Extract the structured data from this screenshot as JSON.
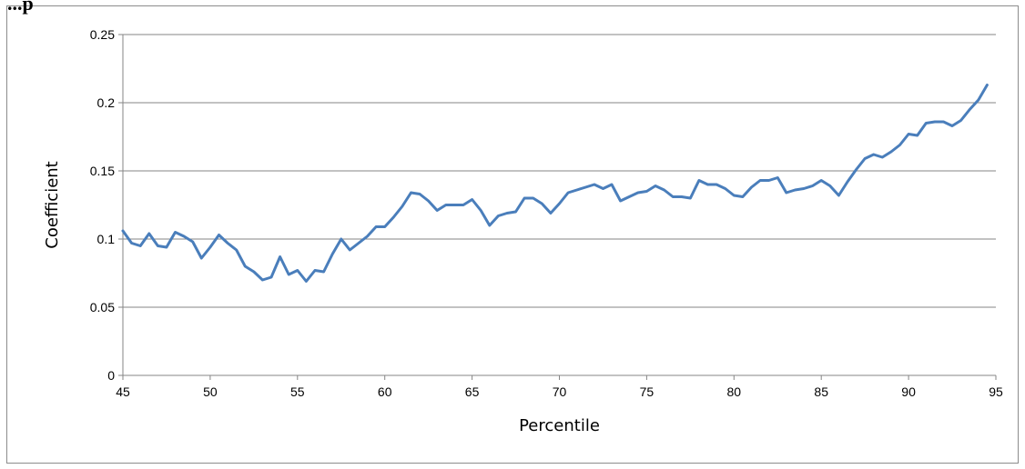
{
  "header_fragment": "...p",
  "chart_data": {
    "type": "line",
    "xlabel": "Percentile",
    "ylabel": "Coefficient",
    "xlim": [
      45,
      95
    ],
    "ylim": [
      0,
      0.25
    ],
    "x_ticks": [
      "45",
      "50",
      "55",
      "60",
      "65",
      "70",
      "75",
      "80",
      "85",
      "90",
      "95"
    ],
    "y_ticks": [
      "0",
      "0.05",
      "0.1",
      "0.15",
      "0.2",
      "0.25"
    ],
    "y_tick_values": [
      0,
      0.05,
      0.1,
      0.15,
      0.2,
      0.25
    ],
    "x_tick_values": [
      45,
      50,
      55,
      60,
      65,
      70,
      75,
      80,
      85,
      90,
      95
    ],
    "grid": "horizontal",
    "line_color": "#4a7ebb",
    "series": [
      {
        "x": [
          45,
          45.5,
          46,
          46.5,
          47,
          47.5,
          48,
          48.5,
          49,
          49.5,
          50,
          50.5,
          51,
          51.5,
          52,
          52.5,
          53,
          53.5,
          54,
          54.5,
          55,
          55.5,
          56,
          56.5,
          57,
          57.5,
          58,
          58.5,
          59,
          59.5,
          60,
          60.5,
          61,
          61.5,
          62,
          62.5,
          63,
          63.5,
          64,
          64.5,
          65,
          65.5,
          66,
          66.5,
          67,
          67.5,
          68,
          68.5,
          69,
          69.5,
          70,
          70.5,
          71,
          71.5,
          72,
          72.5,
          73,
          73.5,
          74,
          74.5,
          75,
          75.5,
          76,
          76.5,
          77,
          77.5,
          78,
          78.5,
          79,
          79.5,
          80,
          80.5,
          81,
          81.5,
          82,
          82.5,
          83,
          83.5,
          84,
          84.5,
          85,
          85.5,
          86,
          86.5,
          87,
          87.5,
          88,
          88.5,
          89,
          89.5,
          90,
          90.5,
          91,
          91.5,
          92,
          92.5,
          93,
          93.5,
          94,
          94.5
        ],
        "values": [
          0.106,
          0.097,
          0.095,
          0.104,
          0.095,
          0.094,
          0.105,
          0.102,
          0.098,
          0.086,
          0.094,
          0.103,
          0.097,
          0.092,
          0.08,
          0.076,
          0.07,
          0.072,
          0.087,
          0.074,
          0.077,
          0.069,
          0.077,
          0.076,
          0.089,
          0.1,
          0.092,
          0.097,
          0.102,
          0.109,
          0.109,
          0.116,
          0.124,
          0.134,
          0.133,
          0.128,
          0.121,
          0.125,
          0.125,
          0.125,
          0.129,
          0.121,
          0.11,
          0.117,
          0.119,
          0.12,
          0.13,
          0.13,
          0.126,
          0.119,
          0.126,
          0.134,
          0.136,
          0.138,
          0.14,
          0.137,
          0.14,
          0.128,
          0.131,
          0.134,
          0.135,
          0.139,
          0.136,
          0.131,
          0.131,
          0.13,
          0.143,
          0.14,
          0.14,
          0.137,
          0.132,
          0.131,
          0.138,
          0.143,
          0.143,
          0.145,
          0.134,
          0.136,
          0.137,
          0.139,
          0.143,
          0.139,
          0.132,
          0.142,
          0.151,
          0.159,
          0.162,
          0.16,
          0.164,
          0.169,
          0.177,
          0.176,
          0.185,
          0.186,
          0.186,
          0.183,
          0.187,
          0.195,
          0.202,
          0.213
        ]
      }
    ]
  }
}
